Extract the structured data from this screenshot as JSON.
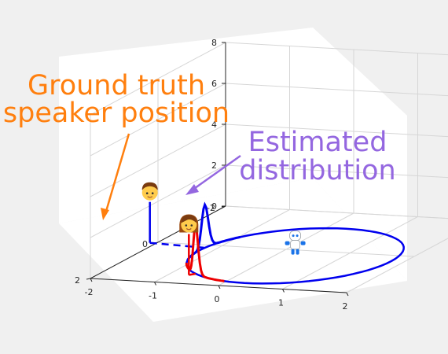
{
  "chart_data": {
    "type": "line",
    "title": "",
    "xlabel": "",
    "ylabel": "",
    "zlabel": "",
    "xlim": [
      -2,
      2
    ],
    "ylim": [
      -2,
      2
    ],
    "zlim": [
      0,
      8
    ],
    "x_ticks": [
      "-2",
      "-1",
      "0",
      "1",
      "2"
    ],
    "y_ticks": [
      "-2",
      "0",
      "2"
    ],
    "z_ticks": [
      "0",
      "2",
      "4",
      "6",
      "8"
    ],
    "grid": true,
    "annotations": {
      "ground_truth_line1": "Ground truth",
      "ground_truth_line2": "speaker position",
      "estimated_line1": "Estimated",
      "estimated_line2": "distribution"
    },
    "colors": {
      "ground_truth_text": "#ff7f0e",
      "estimated_text": "#9467e0",
      "speaker_blue": "#0000ee",
      "speaker_red": "#ee0000"
    },
    "circle": {
      "center": [
        0.3,
        0.3
      ],
      "radius": 1.5
    },
    "series": [
      {
        "speaker_position": [
          -2.1,
          0.05
        ],
        "height": 2.0,
        "distribution_peak": 2.1
      },
      {
        "speaker_position": [
          -0.7,
          1.55
        ],
        "height": 2.0,
        "distribution_peak": 2.4
      }
    ],
    "icons": [
      "speaker-boy-icon",
      "speaker-girl-icon",
      "robot-icon"
    ]
  }
}
